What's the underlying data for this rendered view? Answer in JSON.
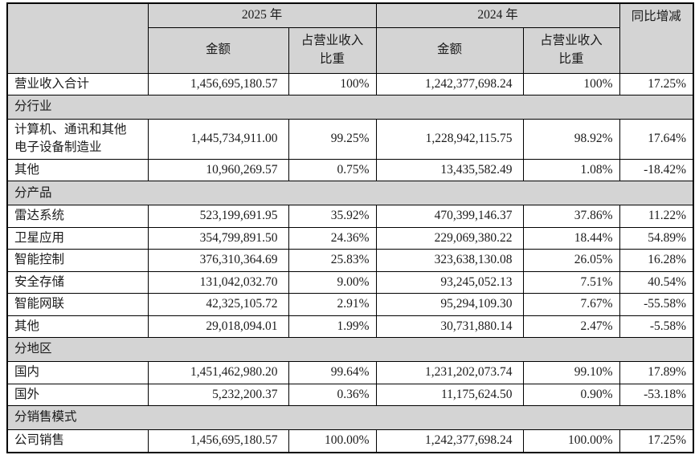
{
  "colors": {
    "header_bg": "#d4d4d4",
    "border": "#000000",
    "text": "#1b1b1b"
  },
  "table": {
    "header": {
      "year_2025": "2025 年",
      "year_2024": "2024 年",
      "yoy": "同比增减",
      "amount": "金额",
      "share": "占营业收入比重"
    },
    "rows": [
      {
        "type": "data",
        "label": "营业收入合计",
        "amount_2025": "1,456,695,180.57",
        "share_2025": "100%",
        "amount_2024": "1,242,377,698.24",
        "share_2024": "100%",
        "yoy": "17.25%"
      },
      {
        "type": "section",
        "label": "分行业"
      },
      {
        "type": "data",
        "label": "计算机、通讯和其他电子设备制造业",
        "amount_2025": "1,445,734,911.00",
        "share_2025": "99.25%",
        "amount_2024": "1,228,942,115.75",
        "share_2024": "98.92%",
        "yoy": "17.64%"
      },
      {
        "type": "data",
        "label": "其他",
        "amount_2025": "10,960,269.57",
        "share_2025": "0.75%",
        "amount_2024": "13,435,582.49",
        "share_2024": "1.08%",
        "yoy": "-18.42%"
      },
      {
        "type": "section",
        "label": "分产品"
      },
      {
        "type": "data",
        "label": "雷达系统",
        "amount_2025": "523,199,691.95",
        "share_2025": "35.92%",
        "amount_2024": "470,399,146.37",
        "share_2024": "37.86%",
        "yoy": "11.22%"
      },
      {
        "type": "data",
        "label": "卫星应用",
        "amount_2025": "354,799,891.50",
        "share_2025": "24.36%",
        "amount_2024": "229,069,380.22",
        "share_2024": "18.44%",
        "yoy": "54.89%"
      },
      {
        "type": "data",
        "label": "智能控制",
        "amount_2025": "376,310,364.69",
        "share_2025": "25.83%",
        "amount_2024": "323,638,130.08",
        "share_2024": "26.05%",
        "yoy": "16.28%"
      },
      {
        "type": "data",
        "label": "安全存储",
        "amount_2025": "131,042,032.70",
        "share_2025": "9.00%",
        "amount_2024": "93,245,052.13",
        "share_2024": "7.51%",
        "yoy": "40.54%"
      },
      {
        "type": "data",
        "label": "智能网联",
        "amount_2025": "42,325,105.72",
        "share_2025": "2.91%",
        "amount_2024": "95,294,109.30",
        "share_2024": "7.67%",
        "yoy": "-55.58%"
      },
      {
        "type": "data",
        "label": "其他",
        "amount_2025": "29,018,094.01",
        "share_2025": "1.99%",
        "amount_2024": "30,731,880.14",
        "share_2024": "2.47%",
        "yoy": "-5.58%"
      },
      {
        "type": "section",
        "label": "分地区"
      },
      {
        "type": "data",
        "label": "国内",
        "amount_2025": "1,451,462,980.20",
        "share_2025": "99.64%",
        "amount_2024": "1,231,202,073.74",
        "share_2024": "99.10%",
        "yoy": "17.89%"
      },
      {
        "type": "data",
        "label": "国外",
        "amount_2025": "5,232,200.37",
        "share_2025": "0.36%",
        "amount_2024": "11,175,624.50",
        "share_2024": "0.90%",
        "yoy": "-53.18%"
      },
      {
        "type": "section",
        "label": "分销售模式"
      },
      {
        "type": "data",
        "label": "公司销售",
        "amount_2025": "1,456,695,180.57",
        "share_2025": "100.00%",
        "amount_2024": "1,242,377,698.24",
        "share_2024": "100.00%",
        "yoy": "17.25%"
      }
    ]
  }
}
